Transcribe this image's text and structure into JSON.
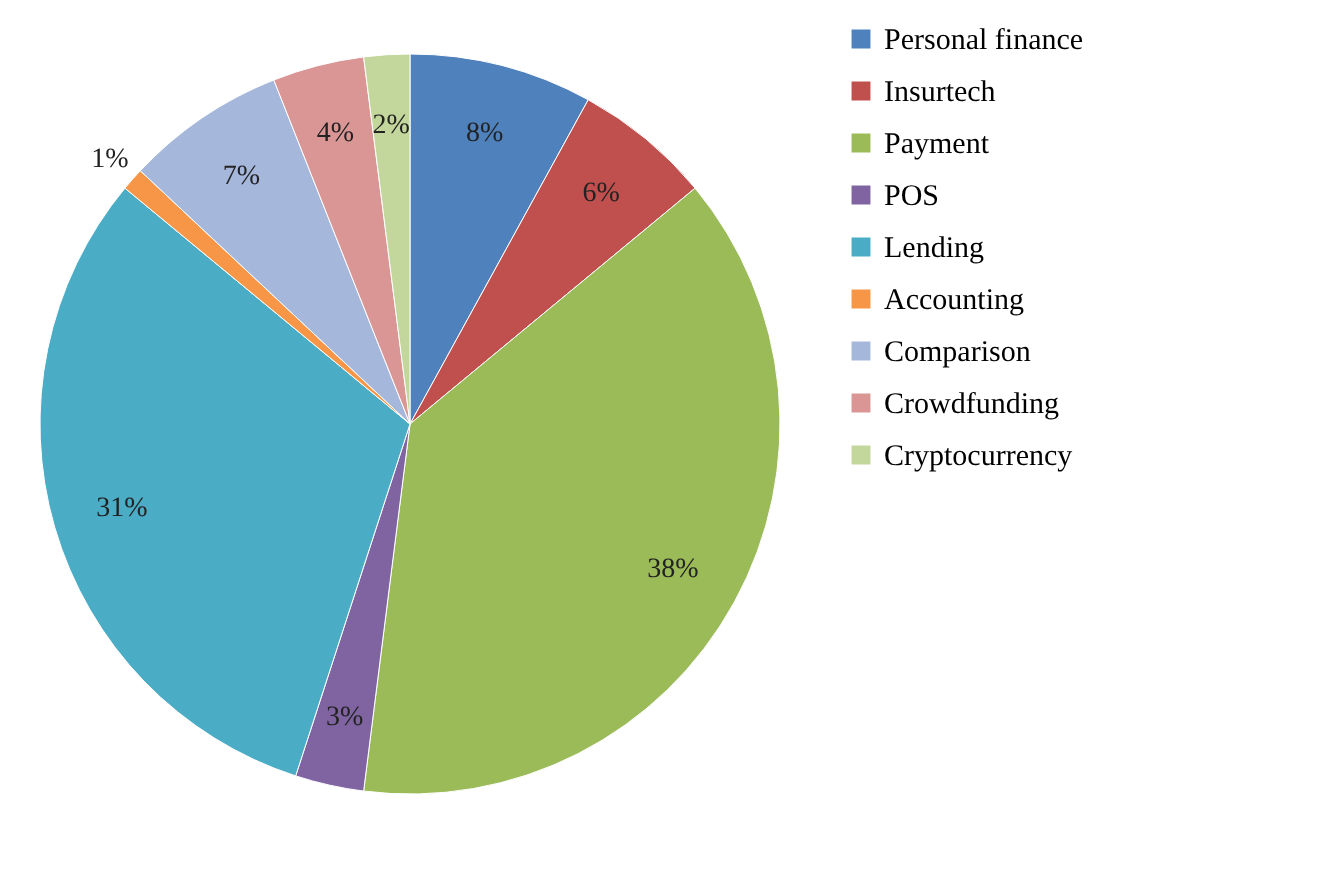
{
  "chart_data": {
    "type": "pie",
    "categories": [
      "Personal finance",
      "Insurtech",
      "Payment",
      "POS",
      "Lending",
      "Accounting",
      "Comparison",
      "Crowdfunding",
      "Cryptocurrency"
    ],
    "values": [
      8,
      6,
      38,
      3,
      31,
      1,
      7,
      4,
      2
    ],
    "colors": [
      "#4f81bd",
      "#c0504d",
      "#9bbb59",
      "#8064a2",
      "#4bacc6",
      "#f79646",
      "#a5b8dc",
      "#d99694",
      "#c3d69b"
    ],
    "value_labels": [
      "8%",
      "6%",
      "38%",
      "3%",
      "31%",
      "1%",
      "7%",
      "4%",
      "2%"
    ],
    "legend": "right"
  }
}
